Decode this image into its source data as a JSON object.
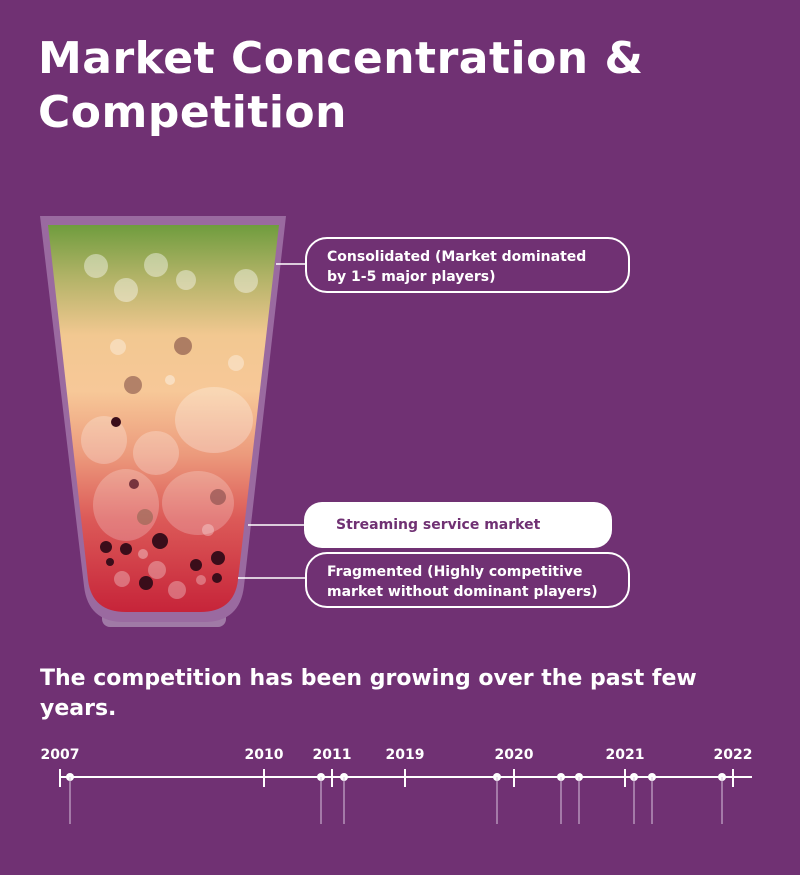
{
  "title": {
    "line1": "Market Concentration &",
    "line2": "Competition"
  },
  "glass": {
    "callouts": {
      "consolidated": {
        "line1": "Consolidated (Market dominated",
        "line2": "by 1-5 major players)"
      },
      "streaming": "Streaming service market",
      "fragmented": {
        "line1": "Fragmented (Highly competitive",
        "line2": "market without dominant players)"
      }
    }
  },
  "subtitle": "The competition has been growing over the past few years.",
  "timeline": {
    "years": [
      "2007",
      "2010",
      "2011",
      "2019",
      "2020",
      "2021",
      "2022"
    ]
  },
  "colors": {
    "background": "#703173",
    "gradient_top": "#6e9c3d",
    "gradient_mid": "#f7c898",
    "gradient_bottom": "#c41e36",
    "text": "#ffffff"
  }
}
